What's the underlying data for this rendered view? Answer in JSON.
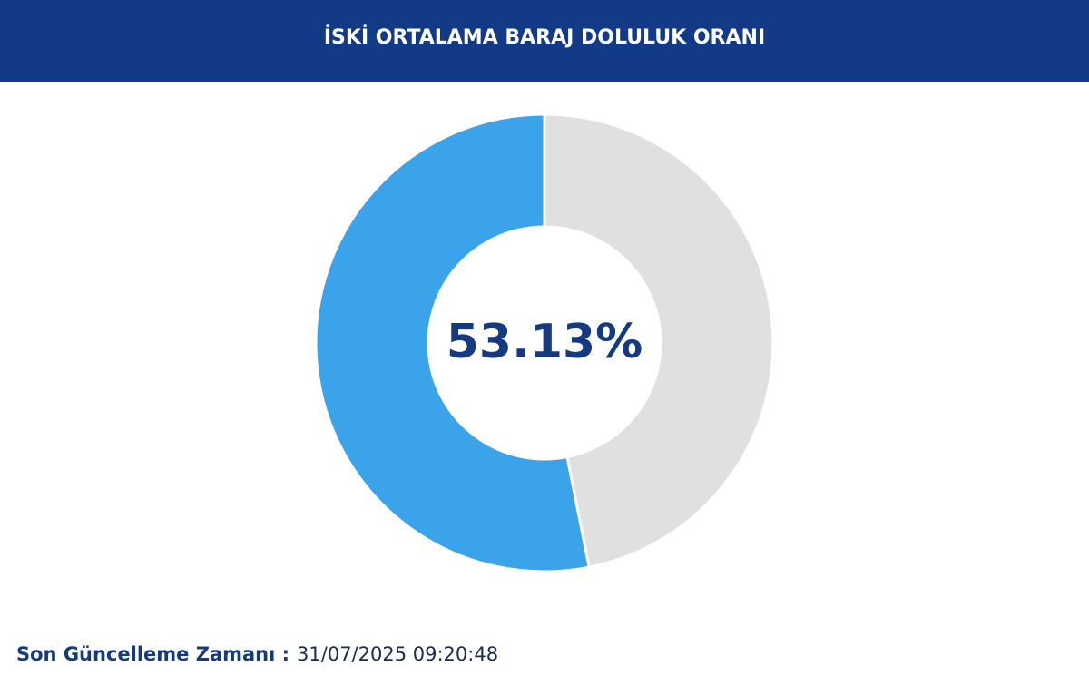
{
  "chart_data": {
    "type": "donut",
    "title": "İSKİ ORTALAMA BARAJ DOLULUK ORANI",
    "values": [
      53.13,
      46.87
    ],
    "value_labels": [
      "53.13%",
      null
    ],
    "colors": [
      "#3ba3ea",
      "#e0e0e0"
    ],
    "direction": "counterclockwise"
  },
  "footer": {
    "label": "Son Güncelleme Zamanı :",
    "value": "31/07/2025 09:20:48"
  }
}
